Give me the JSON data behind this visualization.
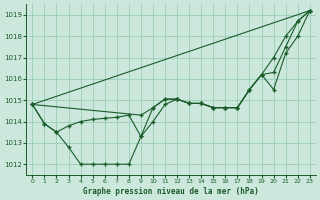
{
  "xlabel": "Graphe pression niveau de la mer (hPa)",
  "ylim": [
    1011.5,
    1019.5
  ],
  "xlim": [
    -0.5,
    23.5
  ],
  "yticks": [
    1012,
    1013,
    1014,
    1015,
    1016,
    1017,
    1018,
    1019
  ],
  "xticks": [
    0,
    1,
    2,
    3,
    4,
    5,
    6,
    7,
    8,
    9,
    10,
    11,
    12,
    13,
    14,
    15,
    16,
    17,
    18,
    19,
    20,
    21,
    22,
    23
  ],
  "bg_color": "#cce8dc",
  "grid_color": "#99ccb8",
  "line_color": "#1a5c2a",
  "series1_x": [
    0,
    1,
    2,
    3,
    4,
    5,
    6,
    7,
    8,
    9,
    10,
    11,
    12,
    13,
    14,
    15,
    16,
    17,
    18,
    19,
    20,
    21,
    22,
    23
  ],
  "series1_y": [
    1014.8,
    1013.9,
    1013.5,
    1012.8,
    1012.0,
    1012.0,
    1012.0,
    1012.0,
    1012.0,
    1013.3,
    1014.0,
    1014.8,
    1015.05,
    1014.85,
    1014.85,
    1014.65,
    1014.65,
    1014.65,
    1015.5,
    1016.2,
    1017.0,
    1018.0,
    1018.7,
    1019.2
  ],
  "series2_x": [
    0,
    1,
    2,
    3,
    4,
    5,
    6,
    7,
    8,
    9,
    10,
    11,
    12,
    13,
    14,
    15,
    16,
    17,
    18,
    19,
    20,
    21,
    22,
    23
  ],
  "series2_y": [
    1014.8,
    1013.9,
    1013.5,
    1013.8,
    1014.0,
    1014.1,
    1014.15,
    1014.2,
    1014.3,
    1013.3,
    1014.65,
    1015.05,
    1015.05,
    1014.85,
    1014.85,
    1014.65,
    1014.65,
    1014.65,
    1015.5,
    1016.2,
    1016.3,
    1017.5,
    1018.7,
    1019.2
  ],
  "series3_x": [
    0,
    9,
    10,
    11,
    12,
    13,
    14,
    15,
    16,
    17,
    18,
    19,
    20,
    21,
    22,
    23
  ],
  "series3_y": [
    1014.8,
    1014.3,
    1014.65,
    1015.05,
    1015.05,
    1014.85,
    1014.85,
    1014.65,
    1014.65,
    1014.65,
    1015.5,
    1016.2,
    1015.5,
    1017.2,
    1018.0,
    1019.2
  ],
  "series4_x": [
    0,
    23
  ],
  "series4_y": [
    1014.8,
    1019.2
  ]
}
